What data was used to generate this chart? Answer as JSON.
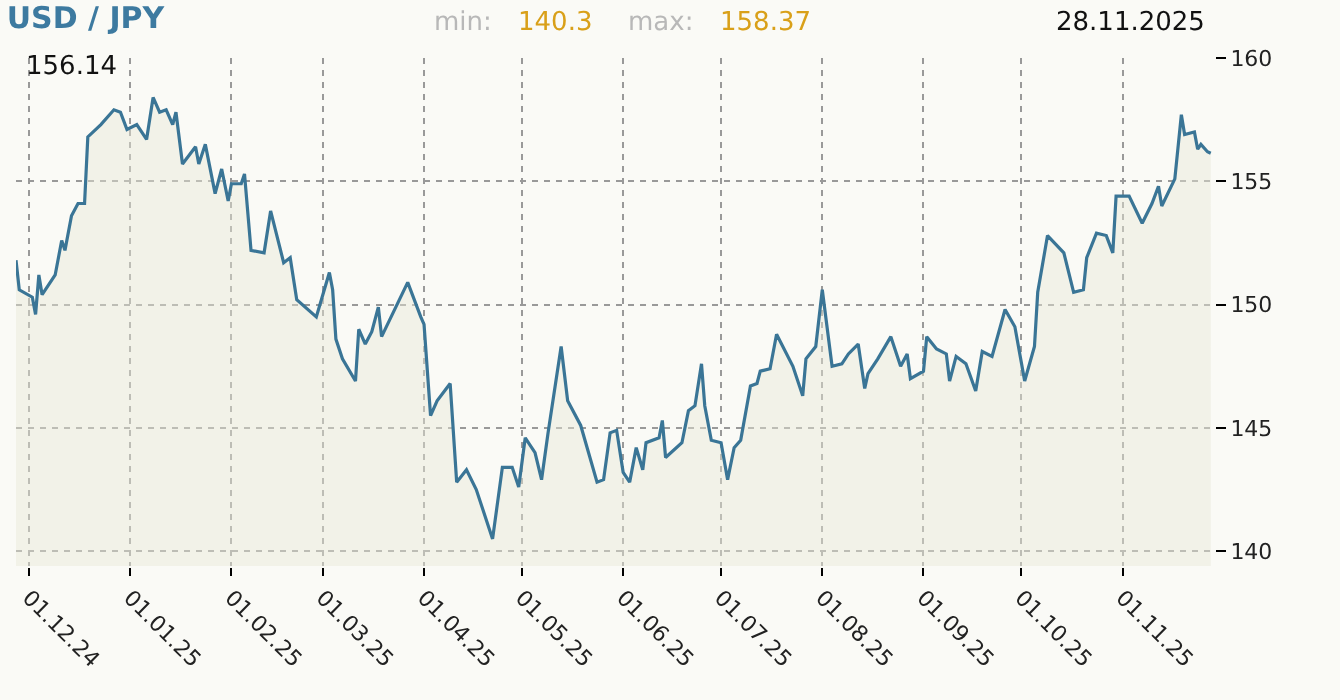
{
  "chart_data": {
    "type": "area",
    "title": "USD / JPY",
    "annotations": [
      "min:",
      "140.3",
      "max:",
      "158.37",
      "28.11.2025",
      "156.14"
    ],
    "x": [
      "2024-11-27",
      "2024-11-28",
      "2024-12-02",
      "2024-12-03",
      "2024-12-04",
      "2024-12-05",
      "2024-12-09",
      "2024-12-11",
      "2024-12-12",
      "2024-12-14",
      "2024-12-16",
      "2024-12-18",
      "2024-12-19",
      "2024-12-23",
      "2024-12-27",
      "2024-12-29",
      "2024-12-31",
      "2025-01-03",
      "2025-01-06",
      "2025-01-08",
      "2025-01-10",
      "2025-01-12",
      "2025-01-14",
      "2025-01-15",
      "2025-01-17",
      "2025-01-21",
      "2025-01-22",
      "2025-01-24",
      "2025-01-27",
      "2025-01-29",
      "2025-01-31",
      "2025-02-01",
      "2025-02-04",
      "2025-02-05",
      "2025-02-07",
      "2025-02-11",
      "2025-02-13",
      "2025-02-17",
      "2025-02-19",
      "2025-02-21",
      "2025-02-27",
      "2025-03-03",
      "2025-03-04",
      "2025-03-05",
      "2025-03-07",
      "2025-03-11",
      "2025-03-12",
      "2025-03-14",
      "2025-03-16",
      "2025-03-18",
      "2025-03-19",
      "2025-03-27",
      "2025-03-31",
      "2025-04-01",
      "2025-04-03",
      "2025-04-05",
      "2025-04-09",
      "2025-04-11",
      "2025-04-14",
      "2025-04-17",
      "2025-04-22",
      "2025-04-25",
      "2025-04-28",
      "2025-04-30",
      "2025-05-02",
      "2025-05-05",
      "2025-05-07",
      "2025-05-09",
      "2025-05-13",
      "2025-05-15",
      "2025-05-19",
      "2025-05-24",
      "2025-05-26",
      "2025-05-28",
      "2025-05-30",
      "2025-06-01",
      "2025-06-03",
      "2025-06-05",
      "2025-06-07",
      "2025-06-08",
      "2025-06-12",
      "2025-06-13",
      "2025-06-14",
      "2025-06-19",
      "2025-06-21",
      "2025-06-23",
      "2025-06-25",
      "2025-06-26",
      "2025-06-28",
      "2025-07-01",
      "2025-07-03",
      "2025-07-05",
      "2025-07-07",
      "2025-07-10",
      "2025-07-12",
      "2025-07-13",
      "2025-07-16",
      "2025-07-18",
      "2025-07-23",
      "2025-07-26",
      "2025-07-27",
      "2025-07-30",
      "2025-08-01",
      "2025-08-04",
      "2025-08-07",
      "2025-08-09",
      "2025-08-12",
      "2025-08-14",
      "2025-08-15",
      "2025-08-18",
      "2025-08-22",
      "2025-08-25",
      "2025-08-27",
      "2025-08-28",
      "2025-09-01",
      "2025-09-02",
      "2025-09-05",
      "2025-09-08",
      "2025-09-09",
      "2025-09-11",
      "2025-09-14",
      "2025-09-17",
      "2025-09-19",
      "2025-09-22",
      "2025-09-26",
      "2025-09-29",
      "2025-10-02",
      "2025-10-05",
      "2025-10-06",
      "2025-10-09",
      "2025-10-14",
      "2025-10-17",
      "2025-10-20",
      "2025-10-21",
      "2025-10-24",
      "2025-10-27",
      "2025-10-29",
      "2025-10-30",
      "2025-11-03",
      "2025-11-07",
      "2025-11-10",
      "2025-11-12",
      "2025-11-13",
      "2025-11-17",
      "2025-11-19",
      "2025-11-20",
      "2025-11-23",
      "2025-11-24",
      "2025-11-25",
      "2025-11-27",
      "2025-11-28"
    ],
    "series": [
      {
        "color": "#3a7596",
        "values": [
          151.8,
          150.6,
          150.3,
          149.6,
          151.2,
          150.4,
          151.2,
          152.6,
          152.2,
          153.6,
          154.1,
          154.1,
          156.8,
          157.3,
          157.9,
          157.8,
          157.1,
          157.3,
          156.7,
          158.4,
          157.8,
          157.9,
          157.3,
          157.8,
          155.7,
          156.4,
          155.7,
          156.5,
          154.5,
          155.5,
          154.2,
          154.9,
          154.9,
          155.3,
          152.2,
          152.1,
          153.8,
          151.7,
          151.9,
          150.2,
          149.5,
          151.3,
          150.6,
          148.6,
          147.8,
          146.9,
          149.0,
          148.4,
          148.9,
          149.9,
          148.7,
          150.9,
          149.5,
          149.2,
          145.5,
          146.1,
          146.8,
          142.8,
          143.3,
          142.5,
          140.5,
          143.4,
          143.4,
          142.6,
          144.6,
          144.0,
          142.9,
          144.8,
          148.3,
          146.1,
          145.1,
          142.8,
          142.9,
          144.8,
          144.9,
          143.2,
          142.8,
          144.2,
          143.3,
          144.4,
          144.6,
          145.3,
          143.8,
          144.4,
          145.7,
          145.9,
          147.6,
          145.9,
          144.5,
          144.4,
          142.9,
          144.2,
          144.5,
          146.7,
          146.8,
          147.3,
          147.4,
          148.8,
          147.5,
          146.3,
          147.8,
          148.3,
          150.6,
          147.5,
          147.6,
          148.0,
          148.4,
          146.6,
          147.2,
          147.8,
          148.7,
          147.5,
          148.0,
          147.0,
          147.3,
          148.7,
          148.2,
          148.0,
          146.9,
          147.9,
          147.6,
          146.5,
          148.1,
          147.9,
          149.8,
          149.1,
          146.9,
          148.3,
          150.5,
          152.8,
          152.1,
          150.5,
          150.6,
          151.9,
          152.9,
          152.8,
          152.1,
          154.4,
          154.4,
          153.3,
          154.1,
          154.8,
          154.0,
          155.1,
          157.7,
          156.9,
          157.0,
          156.3,
          156.5,
          156.2,
          156.14
        ]
      }
    ],
    "xlim": [
      "2024-11-27",
      "2025-11-29"
    ],
    "xticks": [
      {
        "value": "2024-12-01",
        "label": "01.12.24"
      },
      {
        "value": "2025-01-01",
        "label": "01.01.25"
      },
      {
        "value": "2025-02-01",
        "label": "01.02.25"
      },
      {
        "value": "2025-03-01",
        "label": "01.03.25"
      },
      {
        "value": "2025-04-01",
        "label": "01.04.25"
      },
      {
        "value": "2025-05-01",
        "label": "01.05.25"
      },
      {
        "value": "2025-06-01",
        "label": "01.06.25"
      },
      {
        "value": "2025-07-01",
        "label": "01.07.25"
      },
      {
        "value": "2025-08-01",
        "label": "01.08.25"
      },
      {
        "value": "2025-09-01",
        "label": "01.09.25"
      },
      {
        "value": "2025-10-01",
        "label": "01.10.25"
      },
      {
        "value": "2025-11-01",
        "label": "01.11.25"
      }
    ],
    "ylim": [
      139.4,
      160
    ],
    "yticks": [
      140,
      145,
      150,
      155,
      160
    ],
    "grid": true,
    "marker": "none",
    "line_style": "solid"
  }
}
